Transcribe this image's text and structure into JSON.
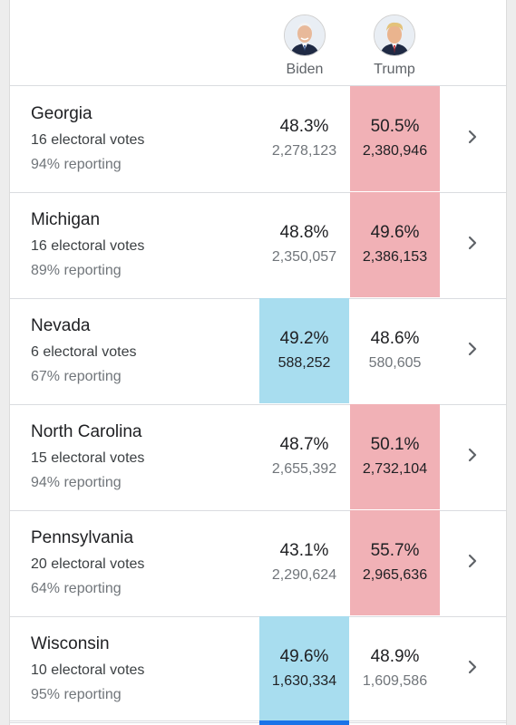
{
  "header": {
    "candidates": [
      {
        "name": "Biden",
        "party_color": "#a8ddef"
      },
      {
        "name": "Trump",
        "party_color": "#f1b1b6"
      }
    ]
  },
  "states": [
    {
      "name": "Georgia",
      "electoral_votes": "16 electoral votes",
      "reporting": "94% reporting",
      "biden_pct": "48.3%",
      "biden_votes": "2,278,123",
      "trump_pct": "50.5%",
      "trump_votes": "2,380,946",
      "leader": "trump"
    },
    {
      "name": "Michigan",
      "electoral_votes": "16 electoral votes",
      "reporting": "89% reporting",
      "biden_pct": "48.8%",
      "biden_votes": "2,350,057",
      "trump_pct": "49.6%",
      "trump_votes": "2,386,153",
      "leader": "trump"
    },
    {
      "name": "Nevada",
      "electoral_votes": "6 electoral votes",
      "reporting": "67% reporting",
      "biden_pct": "49.2%",
      "biden_votes": "588,252",
      "trump_pct": "48.6%",
      "trump_votes": "580,605",
      "leader": "biden"
    },
    {
      "name": "North Carolina",
      "electoral_votes": "15 electoral votes",
      "reporting": "94% reporting",
      "biden_pct": "48.7%",
      "biden_votes": "2,655,392",
      "trump_pct": "50.1%",
      "trump_votes": "2,732,104",
      "leader": "trump"
    },
    {
      "name": "Pennsylvania",
      "electoral_votes": "20 electoral votes",
      "reporting": "64% reporting",
      "biden_pct": "43.1%",
      "biden_votes": "2,290,624",
      "trump_pct": "55.7%",
      "trump_votes": "2,965,636",
      "leader": "trump"
    },
    {
      "name": "Wisconsin",
      "electoral_votes": "10 electoral votes",
      "reporting": "95% reporting",
      "biden_pct": "49.6%",
      "biden_votes": "1,630,334",
      "trump_pct": "48.9%",
      "trump_votes": "1,609,586",
      "leader": "biden"
    }
  ],
  "icons": {
    "row_action": "chevron-right-icon",
    "avatar": "candidate-avatar-icon"
  }
}
